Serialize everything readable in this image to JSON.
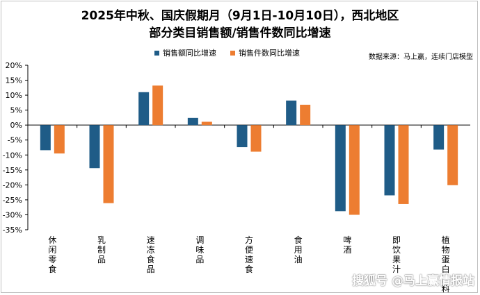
{
  "chart_data": {
    "type": "bar",
    "title_line1": "2025年中秋、国庆假期月（9月1日-10月10日），西北地区",
    "title_line2": "部分类目销售额/销售件数同比增速",
    "source": "数据来源：马上赢，连续门店模型",
    "watermark": "搜狐号 @马上赢情报站",
    "categories": [
      "休闲零食",
      "乳制品",
      "速冻食品",
      "调味品",
      "方便速食",
      "食用油",
      "啤酒",
      "即饮果汁",
      "植物蛋白饮料"
    ],
    "series": [
      {
        "name": "销售额同比增速",
        "color": "#1f5c87",
        "values": [
          -8.4,
          -14.4,
          11.0,
          2.4,
          -7.4,
          8.2,
          -28.8,
          -23.5,
          -8.2
        ]
      },
      {
        "name": "销售件数同比增速",
        "color": "#ed7d31",
        "values": [
          -9.5,
          -26.1,
          13.2,
          1.1,
          -8.9,
          6.8,
          -30.0,
          -26.4,
          -20.1
        ]
      }
    ],
    "yticks": [
      "20%",
      "15%",
      "10%",
      "5%",
      "0%",
      "-5%",
      "-10%",
      "-15%",
      "-20%",
      "-25%",
      "-30%",
      "-35%"
    ],
    "ylim": [
      -35,
      20
    ],
    "grid": false,
    "legend_position": "top"
  }
}
